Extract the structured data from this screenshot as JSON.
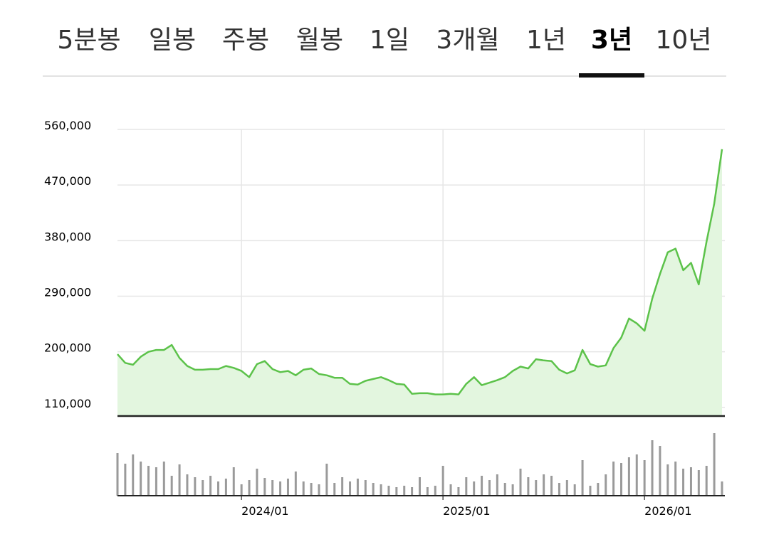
{
  "tabs": {
    "items": [
      "5분봉",
      "일봉",
      "주봉",
      "월봉",
      "1일",
      "3개월",
      "1년",
      "3년",
      "10년"
    ],
    "selected": 7
  },
  "chart_data": [
    {
      "type": "area",
      "color": "#5cc24a",
      "fill": "#e3f6df",
      "categories": [
        null,
        null,
        null,
        null,
        null,
        null,
        null,
        null,
        null,
        null,
        null,
        null,
        null,
        null,
        null,
        null,
        "2024/01",
        null,
        null,
        null,
        null,
        null,
        null,
        null,
        null,
        null,
        null,
        null,
        null,
        null,
        null,
        null,
        null,
        null,
        null,
        null,
        null,
        null,
        null,
        null,
        null,
        null,
        "2025/01",
        null,
        null,
        null,
        null,
        null,
        null,
        null,
        null,
        null,
        null,
        null,
        null,
        null,
        null,
        null,
        null,
        null,
        null,
        null,
        null,
        null,
        null,
        null,
        null,
        null,
        "2026/01",
        null,
        null,
        null,
        null,
        null,
        null,
        null,
        null,
        null,
        null
      ],
      "values": [
        196000,
        182000,
        179000,
        192000,
        200000,
        203000,
        203000,
        211000,
        190000,
        177000,
        171000,
        171000,
        172000,
        172000,
        177000,
        174000,
        169000,
        159000,
        180000,
        185000,
        172000,
        167000,
        169000,
        162000,
        171000,
        173000,
        164000,
        162000,
        158000,
        158000,
        148000,
        147000,
        153000,
        156000,
        159000,
        154000,
        148000,
        147000,
        132000,
        133000,
        133000,
        131000,
        131000,
        132000,
        131000,
        148000,
        159000,
        146000,
        150000,
        154000,
        159000,
        169000,
        176000,
        173000,
        188000,
        186000,
        185000,
        171000,
        165000,
        170000,
        203000,
        180000,
        176000,
        178000,
        206000,
        223000,
        254000,
        246000,
        234000,
        286000,
        326000,
        361000,
        367000,
        332000,
        344000,
        309000,
        378000,
        440000,
        528000
      ],
      "ylim": [
        96000,
        560000
      ],
      "yticks": [
        {
          "value": 560000,
          "label": "560,000"
        },
        {
          "value": 470000,
          "label": "470,000"
        },
        {
          "value": 380000,
          "label": "380,000"
        },
        {
          "value": 290000,
          "label": "290,000"
        },
        {
          "value": 200000,
          "label": "200,000"
        },
        {
          "value": 110000,
          "label": "110,000"
        }
      ],
      "grid": true
    },
    {
      "type": "bar",
      "color": "#9a9a9a",
      "ylim": [
        0,
        100
      ],
      "values": [
        60,
        45,
        58,
        48,
        42,
        40,
        48,
        28,
        44,
        30,
        26,
        22,
        28,
        20,
        24,
        40,
        16,
        22,
        38,
        25,
        22,
        20,
        24,
        34,
        20,
        18,
        16,
        45,
        18,
        26,
        20,
        24,
        22,
        18,
        16,
        14,
        12,
        14,
        12,
        26,
        12,
        14,
        42,
        16,
        12,
        26,
        20,
        28,
        22,
        30,
        18,
        16,
        38,
        26,
        22,
        30,
        28,
        18,
        22,
        16,
        50,
        14,
        18,
        30,
        48,
        46,
        54,
        58,
        50,
        78,
        70,
        44,
        48,
        38,
        40,
        36,
        42,
        88,
        20
      ]
    }
  ]
}
